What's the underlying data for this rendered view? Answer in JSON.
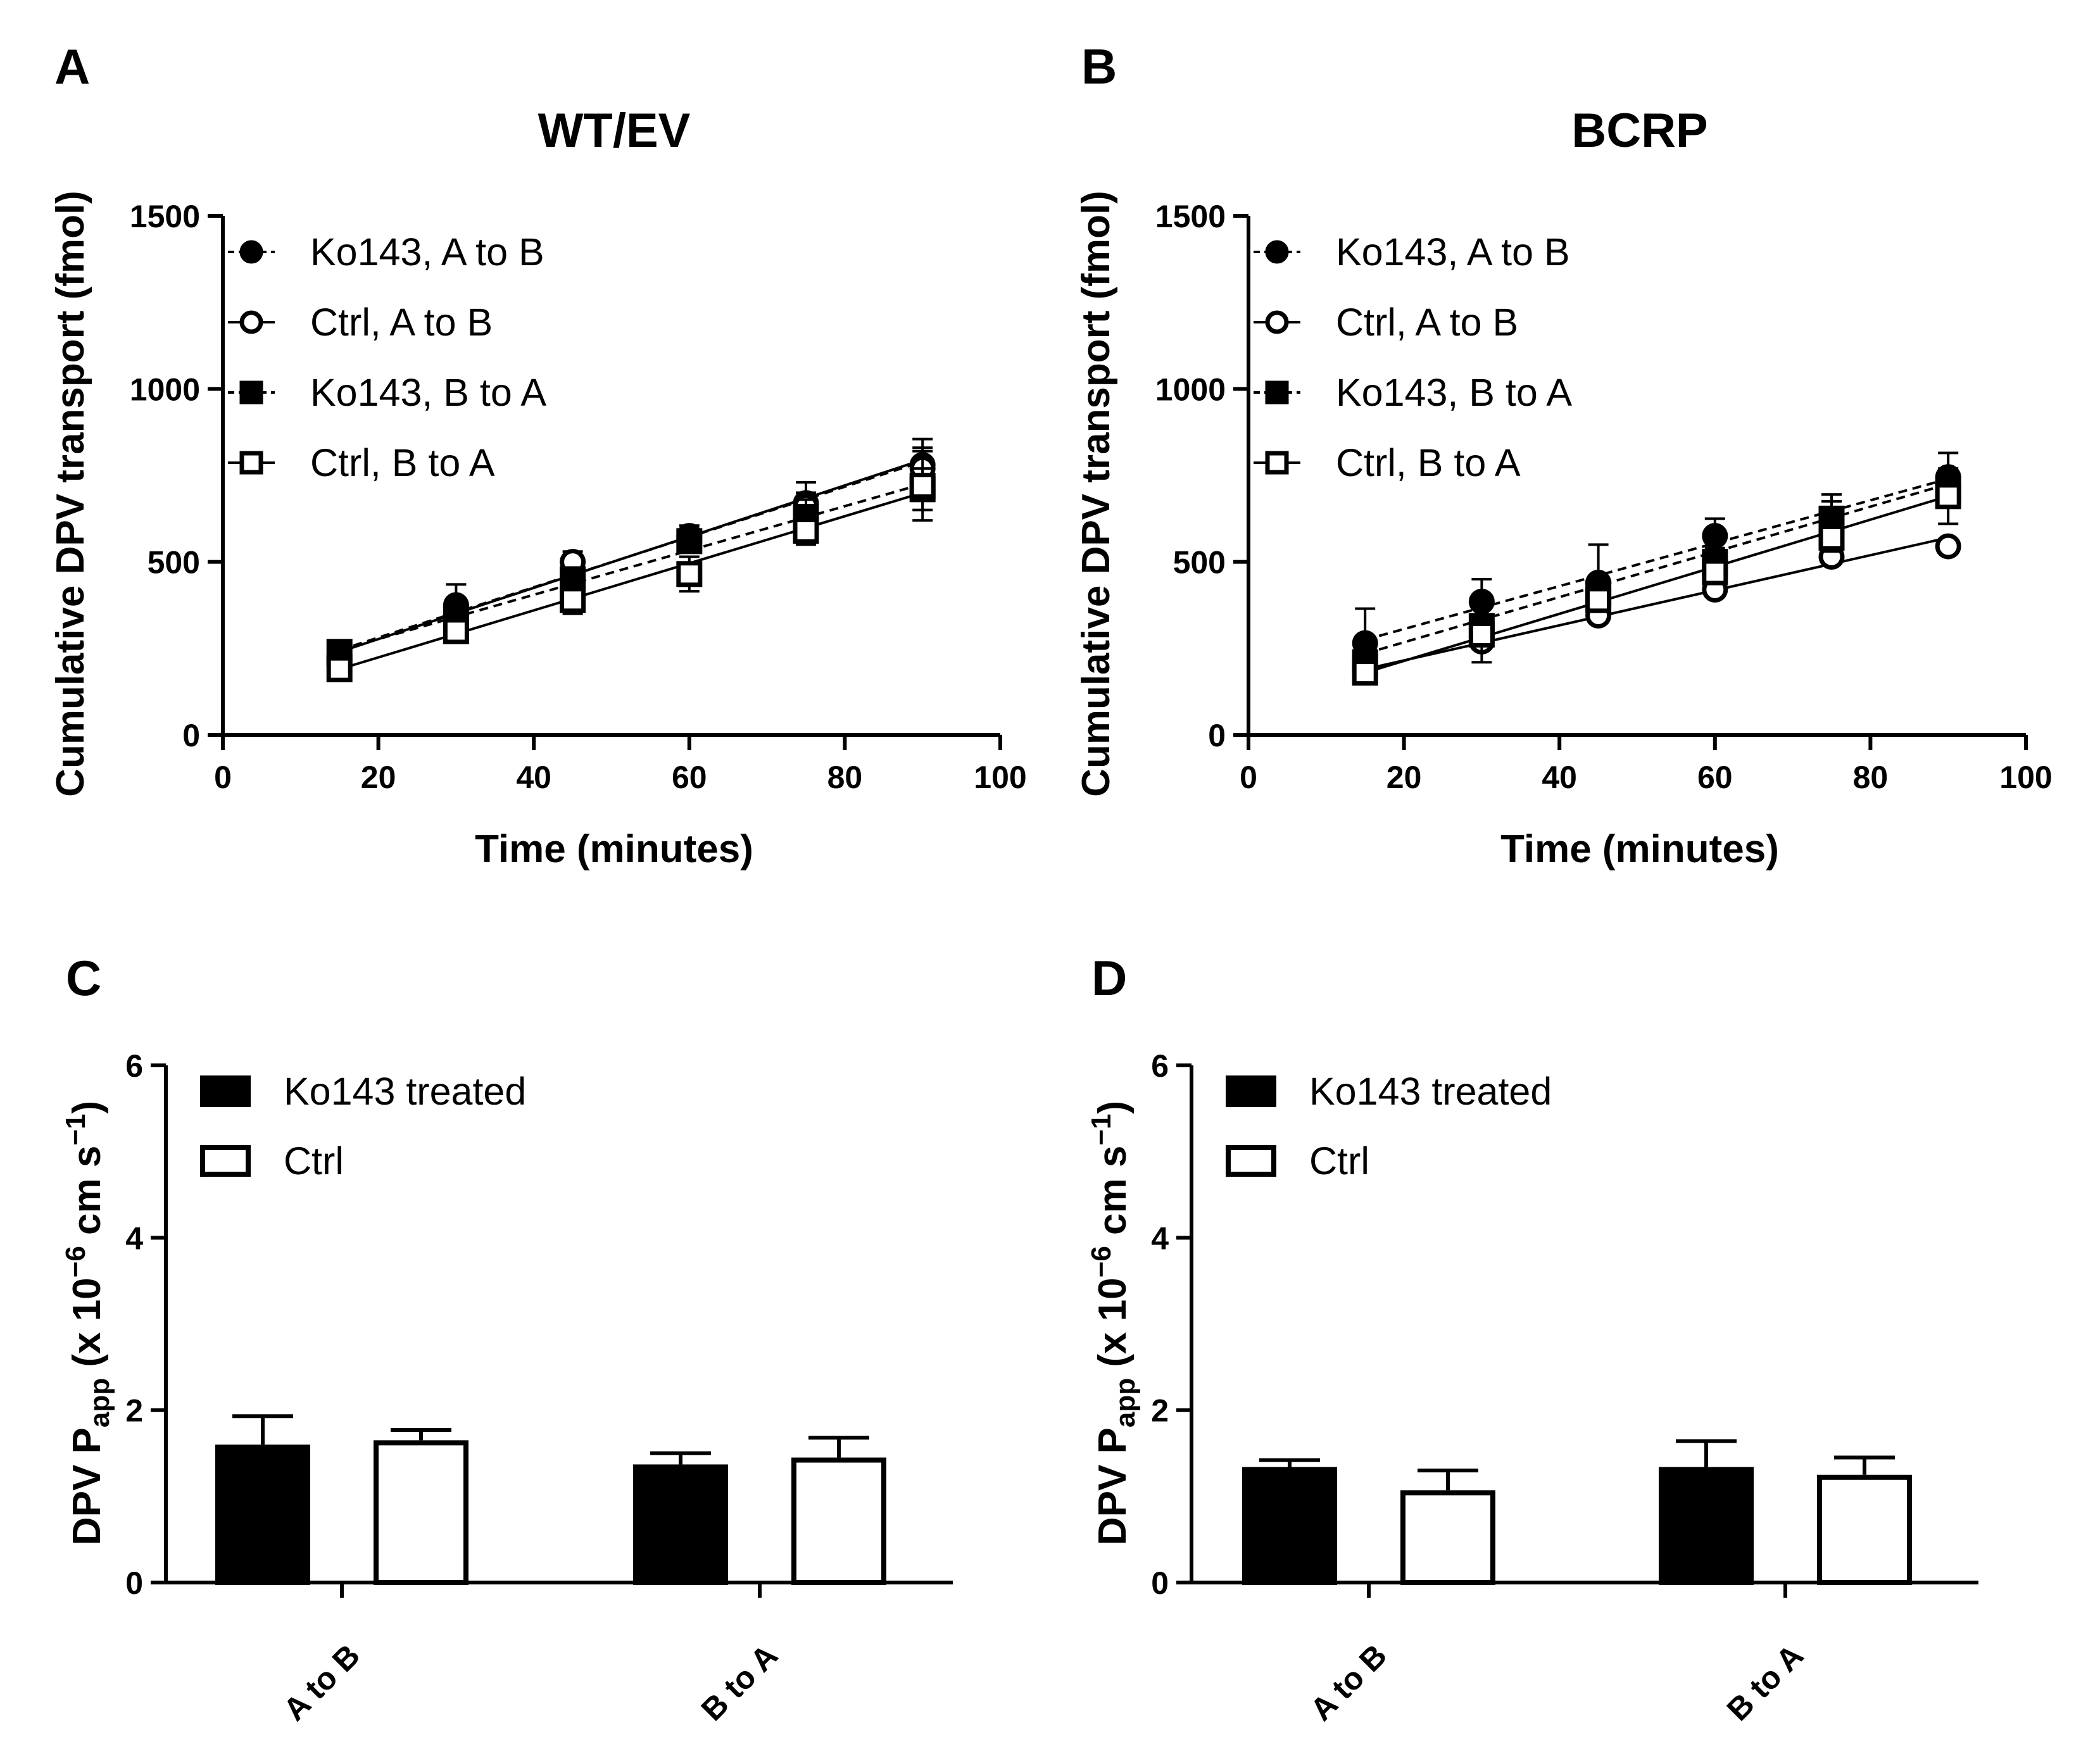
{
  "figure": {
    "domain": "Chart"
  },
  "chart_data": [
    {
      "panel": "A",
      "type": "line",
      "title": "WT/EV",
      "xlabel": "Time (minutes)",
      "ylabel": "Cumulative DPV transport (fmol)",
      "xlim": [
        0,
        100
      ],
      "ylim": [
        0,
        1500
      ],
      "xticks": [
        0,
        20,
        40,
        60,
        80,
        100
      ],
      "yticks": [
        0,
        500,
        1000,
        1500
      ],
      "x": [
        15,
        30,
        45,
        60,
        75,
        90
      ],
      "legend_position": "top-left",
      "series": [
        {
          "name": "Ko143, A to B",
          "marker": "filled-circle",
          "line": "dashed",
          "values": [
            230,
            375,
            430,
            575,
            670,
            780
          ],
          "errors": [
            30,
            60,
            40,
            30,
            60,
            75
          ],
          "fit": [
            245,
            790
          ]
        },
        {
          "name": "Ctrl, A to B",
          "marker": "open-circle",
          "line": "solid",
          "values": [
            200,
            320,
            500,
            565,
            660,
            770
          ],
          "errors": [
            20,
            30,
            30,
            30,
            40,
            60
          ],
          "fit": [
            240,
            795
          ]
        },
        {
          "name": "Ko143, B to A",
          "marker": "filled-square",
          "line": "dashed",
          "values": [
            240,
            340,
            450,
            560,
            630,
            710
          ],
          "errors": [
            20,
            40,
            30,
            30,
            50,
            60
          ],
          "fit": [
            245,
            725
          ]
        },
        {
          "name": "Ctrl, B to A",
          "marker": "open-square",
          "line": "solid",
          "values": [
            190,
            300,
            390,
            465,
            590,
            720
          ],
          "errors": [
            20,
            30,
            40,
            50,
            40,
            100
          ],
          "fit": [
            190,
            700
          ]
        }
      ]
    },
    {
      "panel": "B",
      "type": "line",
      "title": "BCRP",
      "xlabel": "Time (minutes)",
      "ylabel": "Cumulative DPV transport (fmol)",
      "xlim": [
        0,
        100
      ],
      "ylim": [
        0,
        1500
      ],
      "xticks": [
        0,
        20,
        40,
        60,
        80,
        100
      ],
      "yticks": [
        0,
        500,
        1000,
        1500
      ],
      "x": [
        15,
        30,
        45,
        60,
        75,
        90
      ],
      "legend_position": "top-left",
      "series": [
        {
          "name": "Ko143, A to B",
          "marker": "filled-circle",
          "line": "dashed",
          "values": [
            265,
            385,
            440,
            575,
            625,
            745
          ],
          "errors": [
            100,
            65,
            110,
            50,
            70,
            70
          ],
          "fit": [
            275,
            740
          ]
        },
        {
          "name": "Ctrl, A to B",
          "marker": "open-circle",
          "line": "solid",
          "values": [
            200,
            270,
            345,
            420,
            515,
            545
          ],
          "errors": [
            20,
            20,
            20,
            20,
            20,
            20
          ],
          "fit": [
            190,
            570
          ]
        },
        {
          "name": "Ko143, B to A",
          "marker": "filled-square",
          "line": "dashed",
          "values": [
            210,
            315,
            410,
            500,
            625,
            710
          ],
          "errors": [
            20,
            50,
            40,
            40,
            50,
            50
          ],
          "fit": [
            235,
            725
          ]
        },
        {
          "name": "Ctrl, B to A",
          "marker": "open-square",
          "line": "solid",
          "values": [
            180,
            290,
            390,
            470,
            570,
            690
          ],
          "errors": [
            20,
            80,
            30,
            30,
            40,
            80
          ],
          "fit": [
            180,
            690
          ]
        }
      ]
    },
    {
      "panel": "C",
      "type": "bar",
      "title": "",
      "xlabel": "",
      "ylabel_main": "DPV P",
      "ylabel_sub": "app",
      "ylabel_rest": " (x 10",
      "ylabel_sup1": "−6",
      "ylabel_tail": " cm s",
      "ylabel_sup2": "−1",
      "ylabel_close": ")",
      "ylim": [
        0,
        6
      ],
      "yticks": [
        0,
        2,
        4,
        6
      ],
      "categories": [
        "A to B",
        "B to A"
      ],
      "legend_position": "top-left",
      "series": [
        {
          "name": "Ko143 treated",
          "style": "filled",
          "values": [
            1.6,
            1.37
          ],
          "errors": [
            0.33,
            0.13
          ]
        },
        {
          "name": "Ctrl",
          "style": "open",
          "values": [
            1.65,
            1.45
          ],
          "errors": [
            0.12,
            0.23
          ]
        }
      ]
    },
    {
      "panel": "D",
      "type": "bar",
      "title": "",
      "xlabel": "",
      "ylabel_main": "DPV P",
      "ylabel_sub": "app",
      "ylabel_rest": " (x 10",
      "ylabel_sup1": "−6",
      "ylabel_tail": " cm s",
      "ylabel_sup2": "−1",
      "ylabel_close": ")",
      "ylim": [
        0,
        6
      ],
      "yticks": [
        0,
        2,
        4,
        6
      ],
      "categories": [
        "A to B",
        "B to A"
      ],
      "legend_position": "top-left",
      "series": [
        {
          "name": "Ko143 treated",
          "style": "filled",
          "values": [
            1.34,
            1.34
          ],
          "errors": [
            0.08,
            0.3
          ]
        },
        {
          "name": "Ctrl",
          "style": "open",
          "values": [
            1.07,
            1.25
          ],
          "errors": [
            0.23,
            0.2
          ]
        }
      ]
    }
  ]
}
